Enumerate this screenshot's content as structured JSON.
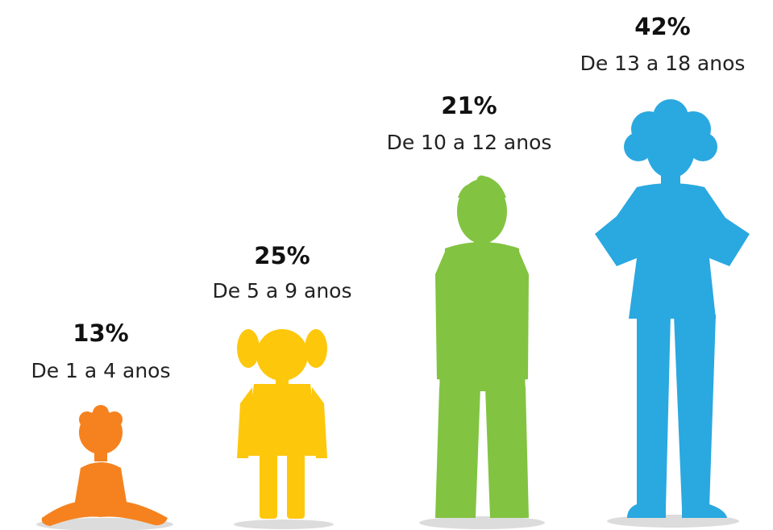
{
  "groups": [
    {
      "share": "13%",
      "label": "De 1 a 4 anos"
    },
    {
      "share": "25%",
      "label": "De 5 a 9 anos"
    },
    {
      "share": "21%",
      "label": "De 10 a 12 anos"
    },
    {
      "share": "42%",
      "label": "De 13 a 18 anos"
    }
  ]
}
